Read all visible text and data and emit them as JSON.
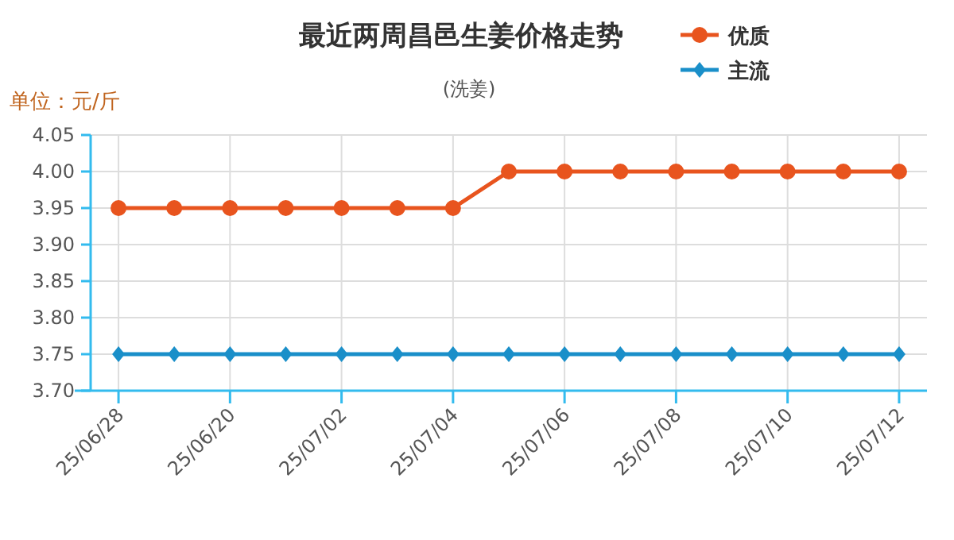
{
  "chart_data": {
    "type": "line",
    "title": "最近两周昌邑生姜价格走势",
    "subtitle": "(洗姜)",
    "ylabel": "单位：元/斤",
    "categories": [
      "25/06/28",
      null,
      "25/06/20",
      null,
      "25/07/02",
      null,
      "25/07/04",
      null,
      "25/07/06",
      null,
      "25/07/08",
      null,
      "25/07/10",
      null,
      "25/07/12"
    ],
    "series": [
      {
        "name": "优质",
        "color": "#e8541e",
        "marker": "circle",
        "values": [
          3.95,
          3.95,
          3.95,
          3.95,
          3.95,
          3.95,
          3.95,
          4.0,
          4.0,
          4.0,
          4.0,
          4.0,
          4.0,
          4.0,
          4.0
        ]
      },
      {
        "name": "主流",
        "color": "#1a8fc9",
        "marker": "diamond",
        "values": [
          3.75,
          3.75,
          3.75,
          3.75,
          3.75,
          3.75,
          3.75,
          3.75,
          3.75,
          3.75,
          3.75,
          3.75,
          3.75,
          3.75,
          3.75
        ]
      }
    ],
    "ylim": [
      3.7,
      4.05
    ],
    "yticks": [
      {
        "value": 3.7,
        "label": "3.70"
      },
      {
        "value": 3.75,
        "label": "3.75"
      },
      {
        "value": 3.8,
        "label": "3.80"
      },
      {
        "value": 3.85,
        "label": "3.85"
      },
      {
        "value": 3.9,
        "label": "3.90"
      },
      {
        "value": 3.95,
        "label": "3.95"
      },
      {
        "value": 4.0,
        "label": "4.00"
      },
      {
        "value": 4.05,
        "label": "4.05"
      }
    ],
    "grid": true,
    "legend": "top right",
    "line_style": "solid"
  }
}
